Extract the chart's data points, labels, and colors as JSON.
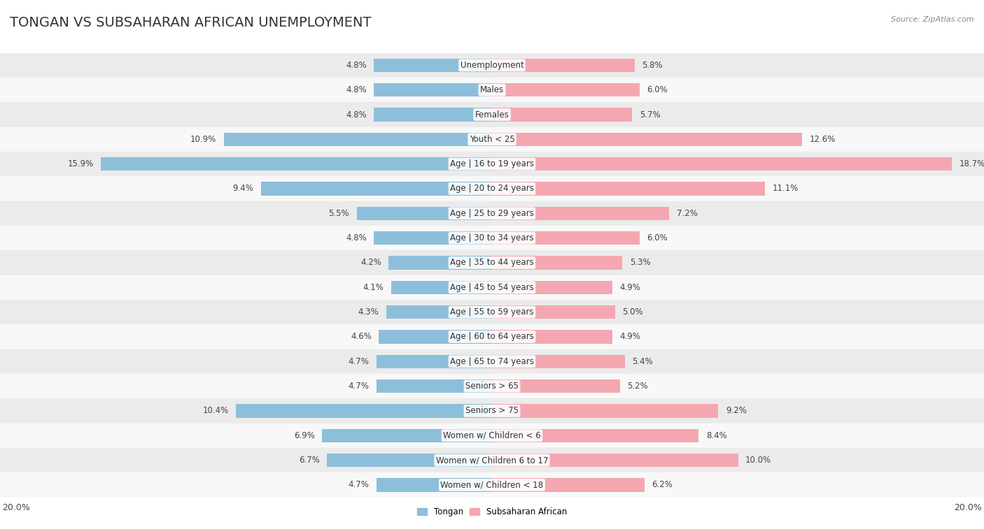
{
  "title": "TONGAN VS SUBSAHARAN AFRICAN UNEMPLOYMENT",
  "source": "Source: ZipAtlas.com",
  "categories": [
    "Unemployment",
    "Males",
    "Females",
    "Youth < 25",
    "Age | 16 to 19 years",
    "Age | 20 to 24 years",
    "Age | 25 to 29 years",
    "Age | 30 to 34 years",
    "Age | 35 to 44 years",
    "Age | 45 to 54 years",
    "Age | 55 to 59 years",
    "Age | 60 to 64 years",
    "Age | 65 to 74 years",
    "Seniors > 65",
    "Seniors > 75",
    "Women w/ Children < 6",
    "Women w/ Children 6 to 17",
    "Women w/ Children < 18"
  ],
  "tongan": [
    4.8,
    4.8,
    4.8,
    10.9,
    15.9,
    9.4,
    5.5,
    4.8,
    4.2,
    4.1,
    4.3,
    4.6,
    4.7,
    4.7,
    10.4,
    6.9,
    6.7,
    4.7
  ],
  "subsaharan": [
    5.8,
    6.0,
    5.7,
    12.6,
    18.7,
    11.1,
    7.2,
    6.0,
    5.3,
    4.9,
    5.0,
    4.9,
    5.4,
    5.2,
    9.2,
    8.4,
    10.0,
    6.2
  ],
  "tongan_color": "#8dbfda",
  "subsaharan_color": "#f4a7b0",
  "row_bg_odd": "#ebebeb",
  "row_bg_even": "#f8f8f8",
  "axis_limit": 20.0,
  "bar_height": 0.55,
  "title_fontsize": 14,
  "label_fontsize": 8.5,
  "tick_fontsize": 9,
  "source_fontsize": 8
}
